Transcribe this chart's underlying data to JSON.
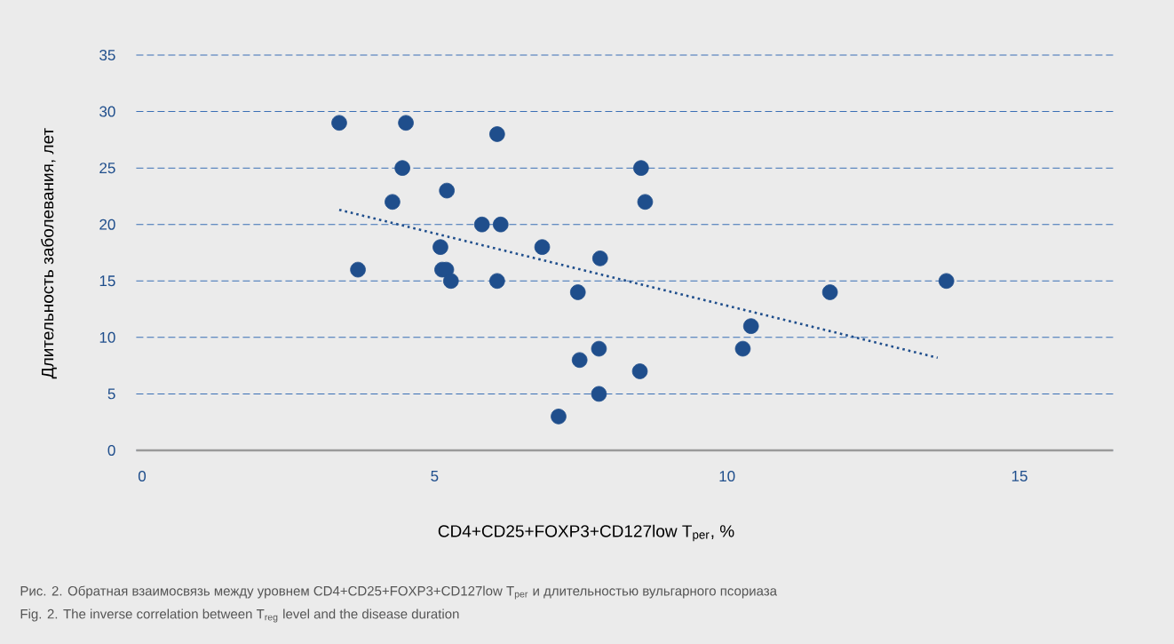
{
  "chart_data": {
    "type": "scatter",
    "xlabel": "CD4+CD25+FOXP3+CD127low T$_{per}$, %",
    "ylabel": "Длительность заболевания, лет",
    "annotations": [
      "Рис. 2. Обратная взаимосвязь между уровнем CD4+CD25+FOXP3+CD127low T$_{per}$ и длительностью вульгарного псориаза",
      "Fig. 2. The inverse correlation between T$_{reg}$ level and the disease duration"
    ],
    "xlim": [
      -0.1,
      16.6
    ],
    "ylim": [
      0,
      35
    ],
    "xticks": [
      0,
      5,
      10,
      15
    ],
    "yticks": [
      0,
      5,
      10,
      15,
      20,
      25,
      30,
      35
    ],
    "grid": "y",
    "series": [
      {
        "color": "#1f4e8c",
        "marker": "circle",
        "x": [
          3.37,
          4.51,
          4.45,
          4.28,
          3.69,
          5.1,
          5.21,
          5.13,
          5.2,
          5.28,
          5.81,
          6.07,
          6.13,
          6.07,
          6.84,
          7.45,
          7.83,
          7.48,
          7.81,
          7.81,
          7.12,
          8.53,
          8.6,
          8.51,
          10.27,
          10.41,
          11.76,
          13.75
        ],
        "values": [
          29,
          29,
          25,
          22,
          16,
          18,
          23,
          16,
          16,
          15,
          20,
          28,
          20,
          15,
          18,
          14,
          17,
          8,
          9,
          5,
          3,
          25,
          22,
          7,
          9,
          11,
          14,
          15
        ]
      },
      {
        "type": "line",
        "color": "#1f4e8c",
        "marker": "none",
        "line_style": "dotted",
        "x": [
          3.37,
          13.6
        ],
        "values": [
          21.3,
          8.2
        ]
      }
    ]
  }
}
